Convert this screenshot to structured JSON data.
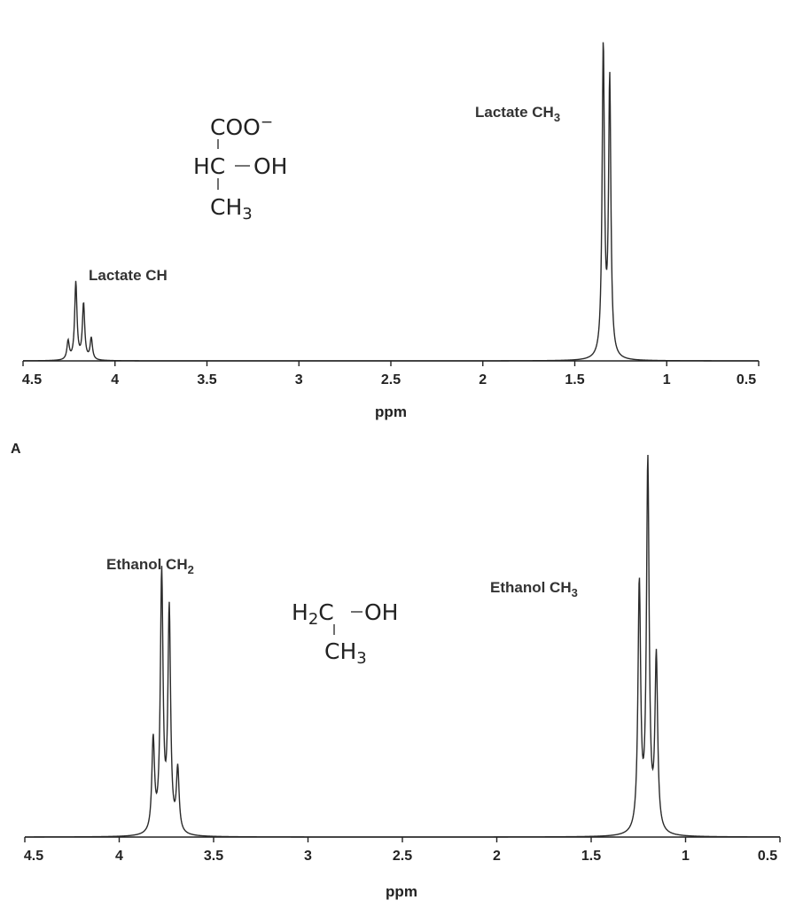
{
  "panel_letter": "A",
  "chart_data": [
    {
      "type": "line",
      "xlabel": "ppm",
      "xlim": [
        4.5,
        0.5
      ],
      "x_reversed": true,
      "x_ticks": [
        4.5,
        4,
        3.5,
        3,
        2.5,
        2,
        1.5,
        1,
        0.5
      ],
      "x_tick_labels": [
        "4.5",
        "4",
        "3.5",
        "3",
        "2.5",
        "2",
        "1.5",
        "1",
        "0.5"
      ],
      "ylim": [
        0,
        1.0
      ],
      "grid": false,
      "series": [
        {
          "peaks": [
            {
              "ppm": 4.255,
              "height": 0.06
            },
            {
              "ppm": 4.213,
              "height": 0.25
            },
            {
              "ppm": 4.171,
              "height": 0.18
            },
            {
              "ppm": 4.129,
              "height": 0.07
            },
            {
              "ppm": 1.345,
              "height": 1.0
            },
            {
              "ppm": 1.31,
              "height": 0.89
            }
          ]
        }
      ],
      "annotations": [
        {
          "text": "Lactate CH",
          "ppm": 4.21
        },
        {
          "text_main": "Lactate CH",
          "subscript": "3",
          "ppm": 1.33
        }
      ],
      "structure": {
        "top": "COO",
        "top_charge": "−",
        "middle_left": "HC",
        "bond": "−",
        "middle_right": "OH",
        "bottom_main": "CH",
        "bottom_sub": "3"
      }
    },
    {
      "type": "line",
      "xlabel": "ppm",
      "xlim": [
        4.5,
        0.5
      ],
      "x_reversed": true,
      "x_ticks": [
        4.5,
        4,
        3.5,
        3,
        2.5,
        2,
        1.5,
        1,
        0.5
      ],
      "x_tick_labels": [
        "4.5",
        "4",
        "3.5",
        "3",
        "2.5",
        "2",
        "1.5",
        "1",
        "0.5"
      ],
      "ylim": [
        0,
        1.0
      ],
      "grid": false,
      "series": [
        {
          "peaks": [
            {
              "ppm": 3.82,
              "height": 0.25
            },
            {
              "ppm": 3.775,
              "height": 0.7
            },
            {
              "ppm": 3.735,
              "height": 0.6
            },
            {
              "ppm": 3.69,
              "height": 0.17
            },
            {
              "ppm": 1.245,
              "height": 0.67
            },
            {
              "ppm": 1.2,
              "height": 1.0
            },
            {
              "ppm": 1.155,
              "height": 0.47
            }
          ]
        }
      ],
      "annotations": [
        {
          "text_main": "Ethanol CH",
          "subscript": "2",
          "ppm": 3.76
        },
        {
          "text_main": "Ethanol CH",
          "subscript": "3",
          "ppm": 1.2
        }
      ],
      "structure": {
        "left_main": "H",
        "left_sub": "2",
        "left_rest": "C",
        "bond": "−",
        "right": "OH",
        "bottom_main": "CH",
        "bottom_sub": "3"
      }
    }
  ]
}
